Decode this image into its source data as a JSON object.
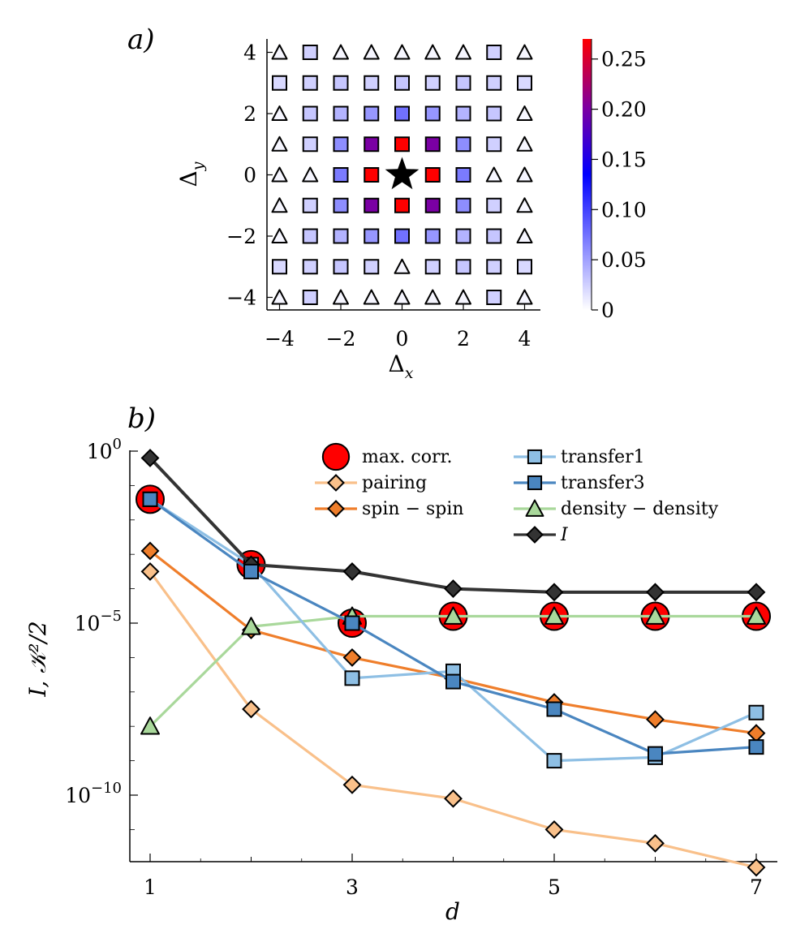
{
  "chart_data": [
    {
      "type": "heatmap",
      "panel_label": "a)",
      "xlabel": "Δx",
      "ylabel": "Δy",
      "xlim": [
        -4,
        4
      ],
      "ylim": [
        -4,
        4
      ],
      "xticks": [
        -4,
        -2,
        0,
        2,
        4
      ],
      "yticks": [
        -4,
        -2,
        0,
        2,
        4
      ],
      "xtick_labels": [
        "−4",
        "−2",
        "0",
        "2",
        "4"
      ],
      "ytick_labels": [
        "−4",
        "−2",
        "0",
        "2",
        "4"
      ],
      "colorbar": {
        "min": 0,
        "max": 0.27,
        "ticks": [
          0,
          0.05,
          0.1,
          0.15,
          0.2,
          0.25
        ],
        "tick_labels": [
          "0",
          "0.05",
          "0.10",
          "0.15",
          "0.20",
          "0.25"
        ],
        "colors": [
          "#ffffff",
          "#0000ff",
          "#ff0000"
        ]
      },
      "center_marker": "star",
      "rows_y": [
        4,
        3,
        2,
        1,
        0,
        -1,
        -2,
        -3,
        -4
      ],
      "cols_x": [
        -4,
        -3,
        -2,
        -1,
        0,
        1,
        2,
        3,
        4
      ],
      "markers": [
        [
          "T",
          "S",
          "T",
          "T",
          "T",
          "T",
          "T",
          "S",
          "T"
        ],
        [
          "S",
          "S",
          "S",
          "S",
          "S",
          "S",
          "S",
          "S",
          "S"
        ],
        [
          "T",
          "S",
          "S",
          "S",
          "S",
          "S",
          "S",
          "S",
          "T"
        ],
        [
          "T",
          "S",
          "S",
          "S",
          "S",
          "S",
          "S",
          "S",
          "T"
        ],
        [
          "T",
          "T",
          "S",
          "S",
          "*",
          "S",
          "S",
          "T",
          "T"
        ],
        [
          "T",
          "S",
          "S",
          "S",
          "S",
          "S",
          "S",
          "S",
          "T"
        ],
        [
          "T",
          "S",
          "S",
          "S",
          "S",
          "S",
          "S",
          "S",
          "T"
        ],
        [
          "S",
          "S",
          "S",
          "S",
          "T",
          "S",
          "S",
          "S",
          "S"
        ],
        [
          "T",
          "S",
          "T",
          "T",
          "T",
          "T",
          "T",
          "S",
          "T"
        ]
      ],
      "values": [
        [
          0.005,
          0.025,
          0.005,
          0.005,
          0.005,
          0.005,
          0.005,
          0.025,
          0.005
        ],
        [
          0.02,
          0.025,
          0.03,
          0.025,
          0.03,
          0.025,
          0.03,
          0.025,
          0.02
        ],
        [
          0.005,
          0.03,
          0.04,
          0.055,
          0.075,
          0.055,
          0.04,
          0.03,
          0.005
        ],
        [
          0.005,
          0.025,
          0.06,
          0.2,
          0.27,
          0.2,
          0.06,
          0.025,
          0.005
        ],
        [
          0.005,
          0.005,
          0.07,
          0.27,
          null,
          0.27,
          0.07,
          0.005,
          0.005
        ],
        [
          0.005,
          0.025,
          0.06,
          0.2,
          0.27,
          0.2,
          0.06,
          0.025,
          0.005
        ],
        [
          0.005,
          0.03,
          0.04,
          0.055,
          0.075,
          0.055,
          0.04,
          0.03,
          0.005
        ],
        [
          0.02,
          0.025,
          0.03,
          0.025,
          0.005,
          0.025,
          0.03,
          0.025,
          0.02
        ],
        [
          0.005,
          0.025,
          0.005,
          0.005,
          0.005,
          0.005,
          0.005,
          0.025,
          0.005
        ]
      ]
    },
    {
      "type": "line",
      "panel_label": "b)",
      "xlabel": "d",
      "ylabel": "I, 𝒦²/2",
      "yscale": "log",
      "xlim": [
        0.9,
        7.2
      ],
      "ylim_log10": [
        -11.9,
        0.6
      ],
      "xticks": [
        1,
        3,
        5,
        7
      ],
      "xtick_labels": [
        "1",
        "3",
        "5",
        "7"
      ],
      "x_minor_ticks": [
        2,
        4,
        6
      ],
      "yticks_log10": [
        0,
        -5,
        -10
      ],
      "ytick_base": "10",
      "ytick_exponents": [
        "0",
        "−5",
        "−10"
      ],
      "legend_position": "top-right",
      "x": [
        1,
        2,
        3,
        4,
        5,
        6,
        7
      ],
      "series": [
        {
          "name": "pairing",
          "legend": "pairing",
          "color": "#f9c08a",
          "marker": "diamond",
          "log10": [
            -3.5,
            -7.5,
            -9.7,
            -10.1,
            -11.0,
            -11.4,
            -12.1
          ]
        },
        {
          "name": "spin-spin",
          "legend": "spin − spin",
          "color": "#ef7e2b",
          "marker": "diamond",
          "log10": [
            -2.9,
            -5.2,
            -6.0,
            -6.6,
            -7.3,
            -7.8,
            -8.2
          ]
        },
        {
          "name": "density-density",
          "legend": "density − density",
          "color": "#a9d89b",
          "marker": "triangle",
          "log10": [
            -8.0,
            -5.1,
            -4.8,
            -4.8,
            -4.8,
            -4.8,
            -4.8
          ]
        },
        {
          "name": "transfer1",
          "legend": "transfer1",
          "color": "#8ebfe4",
          "marker": "square",
          "log10": [
            -1.4,
            -3.3,
            -6.6,
            -6.4,
            -9.0,
            -8.9,
            -7.6
          ]
        },
        {
          "name": "transfer3",
          "legend": "transfer3",
          "color": "#4a86c0",
          "marker": "square",
          "log10": [
            -1.4,
            -3.5,
            -5.0,
            -6.7,
            -7.5,
            -8.8,
            -8.6
          ]
        },
        {
          "name": "I",
          "legend": "I",
          "color": "#333333",
          "marker": "diamond",
          "log10": [
            -0.2,
            -3.3,
            -3.5,
            -4.0,
            -4.1,
            -4.1,
            -4.1
          ]
        },
        {
          "name": "max. corr.",
          "legend": "max. corr.",
          "color": "#ff0000",
          "marker": "circle",
          "log10": [
            -1.4,
            -3.3,
            -5.0,
            -4.8,
            -4.8,
            -4.8,
            -4.8
          ]
        }
      ]
    }
  ]
}
